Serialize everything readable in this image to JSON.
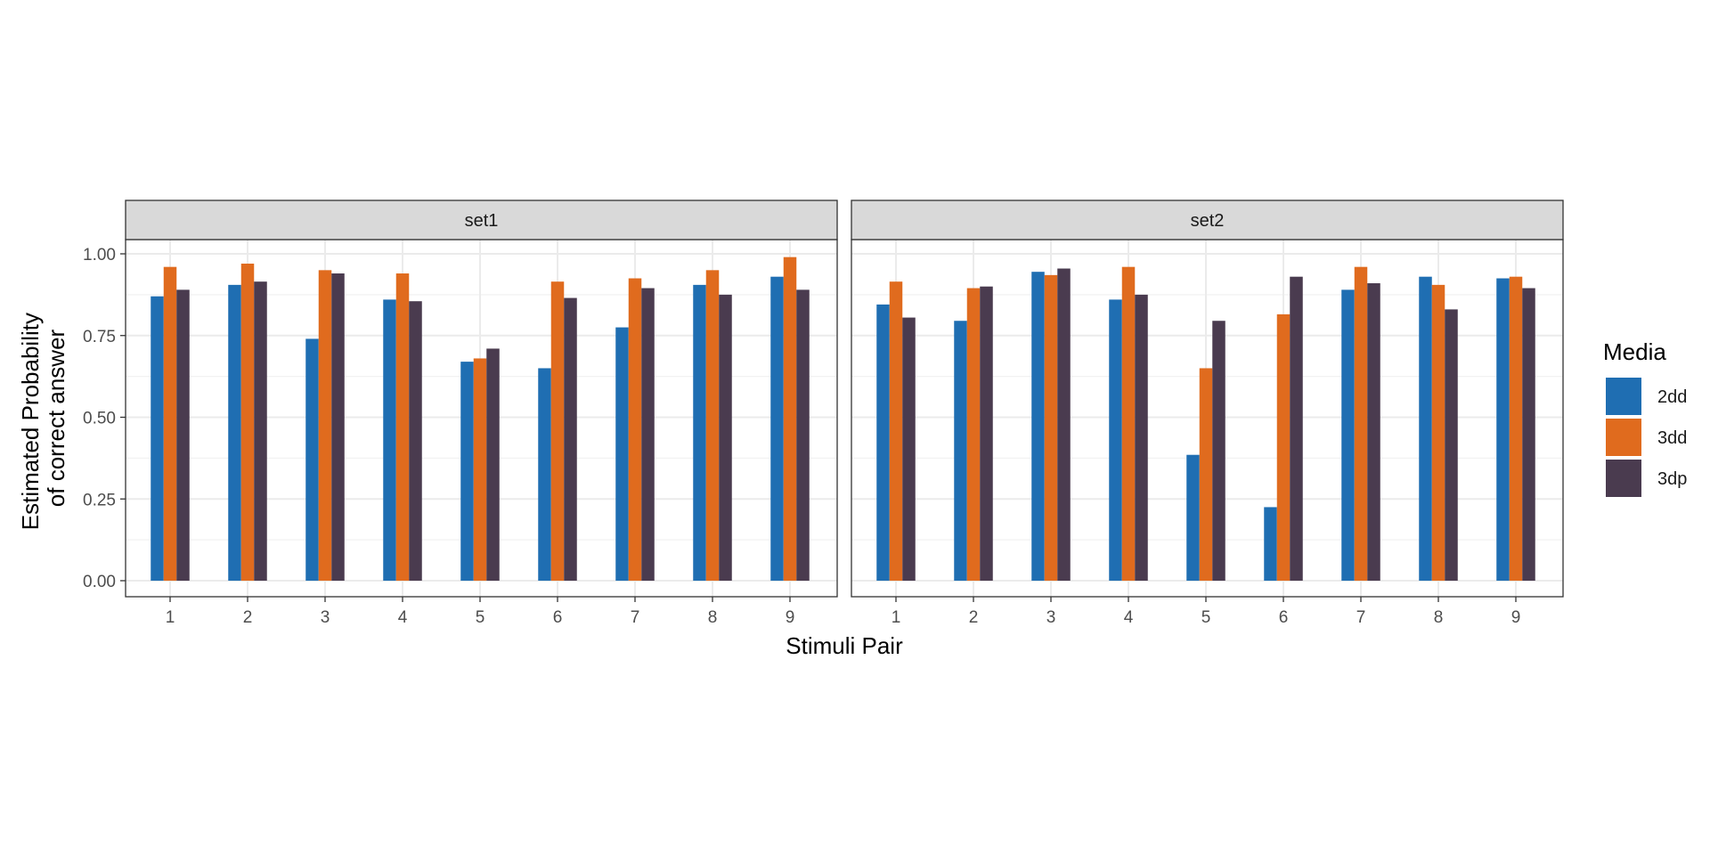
{
  "chart_data": {
    "type": "bar",
    "ylabel": [
      "Estimated Probability",
      "of correct answer"
    ],
    "xlabel": "Stimuli Pair",
    "ylim": [
      0,
      1.05
    ],
    "yticks": [
      0,
      0.25,
      0.5,
      0.75,
      1.0
    ],
    "ytick_labels": [
      "0.00",
      "0.25",
      "0.50",
      "0.75",
      "1.00"
    ],
    "categories": [
      "1",
      "2",
      "3",
      "4",
      "5",
      "6",
      "7",
      "8",
      "9"
    ],
    "legend": {
      "title": "Media",
      "position": "right",
      "entries": [
        {
          "name": "2dd",
          "color": "#1f6eb2"
        },
        {
          "name": "3dd",
          "color": "#e06b1e"
        },
        {
          "name": "3dp",
          "color": "#4a3b4f"
        }
      ]
    },
    "grid": true,
    "panels": [
      {
        "label": "set1",
        "series": [
          {
            "name": "2dd",
            "values": [
              0.87,
              0.905,
              0.74,
              0.86,
              0.67,
              0.65,
              0.775,
              0.905,
              0.93
            ]
          },
          {
            "name": "3dd",
            "values": [
              0.96,
              0.97,
              0.95,
              0.94,
              0.68,
              0.915,
              0.925,
              0.95,
              0.99
            ]
          },
          {
            "name": "3dp",
            "values": [
              0.89,
              0.915,
              0.94,
              0.855,
              0.71,
              0.865,
              0.895,
              0.875,
              0.89
            ]
          }
        ]
      },
      {
        "label": "set2",
        "series": [
          {
            "name": "2dd",
            "values": [
              0.845,
              0.795,
              0.945,
              0.86,
              0.385,
              0.225,
              0.89,
              0.93,
              0.925
            ]
          },
          {
            "name": "3dd",
            "values": [
              0.915,
              0.895,
              0.935,
              0.96,
              0.65,
              0.815,
              0.96,
              0.905,
              0.93
            ]
          },
          {
            "name": "3dp",
            "values": [
              0.805,
              0.9,
              0.955,
              0.875,
              0.795,
              0.93,
              0.91,
              0.83,
              0.895
            ]
          }
        ]
      }
    ]
  }
}
